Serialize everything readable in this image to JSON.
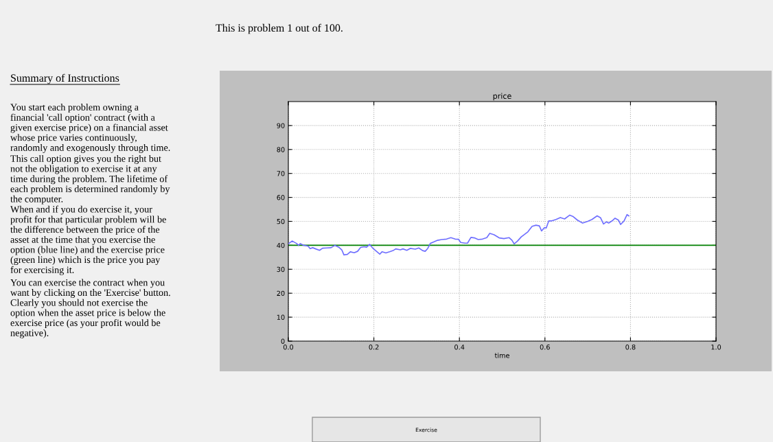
{
  "chart_data": {
    "type": "line",
    "title": "price",
    "xlabel": "time",
    "x": [
      0.0,
      0.009,
      0.019,
      0.024,
      0.028,
      0.036,
      0.046,
      0.051,
      0.057,
      0.064,
      0.073,
      0.08,
      0.09,
      0.1,
      0.109,
      0.118,
      0.125,
      0.13,
      0.138,
      0.145,
      0.154,
      0.162,
      0.169,
      0.177,
      0.183,
      0.19,
      0.198,
      0.206,
      0.214,
      0.219,
      0.228,
      0.237,
      0.245,
      0.251,
      0.262,
      0.268,
      0.277,
      0.285,
      0.297,
      0.305,
      0.314,
      0.32,
      0.326,
      0.332,
      0.34,
      0.349,
      0.359,
      0.37,
      0.38,
      0.39,
      0.398,
      0.403,
      0.413,
      0.419,
      0.427,
      0.435,
      0.444,
      0.454,
      0.464,
      0.471,
      0.481,
      0.493,
      0.504,
      0.516,
      0.523,
      0.528,
      0.536,
      0.545,
      0.552,
      0.56,
      0.57,
      0.579,
      0.587,
      0.592,
      0.599,
      0.603,
      0.609,
      0.616,
      0.626,
      0.636,
      0.646,
      0.658,
      0.666,
      0.676,
      0.688,
      0.7,
      0.71,
      0.722,
      0.73,
      0.737,
      0.744,
      0.749,
      0.757,
      0.764,
      0.772,
      0.777,
      0.785,
      0.792,
      0.796
    ],
    "series": [
      {
        "color": "#6f6fff",
        "values": [
          40.6,
          41.8,
          40.8,
          40.0,
          40.7,
          40.0,
          39.7,
          38.6,
          39.0,
          38.5,
          37.9,
          38.8,
          38.9,
          39.0,
          40.0,
          39.2,
          38.1,
          36.0,
          36.2,
          37.3,
          36.9,
          37.5,
          39.1,
          39.4,
          39.2,
          40.4,
          38.7,
          37.5,
          36.3,
          37.3,
          36.8,
          37.3,
          37.8,
          38.5,
          38.1,
          38.5,
          37.9,
          38.7,
          38.4,
          38.9,
          37.8,
          37.5,
          38.7,
          40.8,
          41.4,
          42.1,
          42.4,
          42.6,
          43.2,
          42.6,
          42.5,
          41.2,
          40.9,
          40.9,
          43.3,
          43.1,
          42.4,
          42.6,
          43.2,
          45.0,
          44.4,
          43.1,
          42.8,
          43.2,
          42.1,
          40.6,
          41.8,
          43.6,
          44.5,
          45.6,
          47.9,
          48.4,
          48.1,
          46.0,
          47.4,
          47.2,
          50.2,
          50.2,
          50.8,
          51.6,
          51.0,
          52.6,
          52.0,
          50.5,
          49.3,
          50.0,
          50.8,
          52.3,
          51.5,
          48.9,
          49.8,
          49.3,
          50.2,
          51.3,
          50.5,
          48.7,
          50.2,
          52.8,
          52.3
        ]
      }
    ],
    "ref_lines": [
      {
        "axis": "y",
        "value": 40,
        "color": "#008000"
      }
    ],
    "xlim": [
      0,
      1
    ],
    "ylim": [
      0,
      100
    ],
    "xticks": [
      {
        "value": 0,
        "label": "0.0"
      },
      {
        "value": 0.2,
        "label": "0.2"
      },
      {
        "value": 0.4,
        "label": "0.4"
      },
      {
        "value": 0.6,
        "label": "0.6"
      },
      {
        "value": 0.8,
        "label": "0.8"
      },
      {
        "value": 1,
        "label": "1.0"
      }
    ],
    "yticks": [
      0,
      10,
      20,
      30,
      40,
      50,
      60,
      70,
      80,
      90
    ],
    "grid": true,
    "line_style": "solid",
    "marker": "none",
    "annotations": [
      "This is problem 1 out of 100.",
      "Summary of Instructions",
      "You start each problem owning a financial 'call option' contract (with a given exercise price) on a financial asset whose price varies continuously, randomly and exogenously through time.",
      "This call option gives you the right but not the obligation to exercise it at any time during the problem. The lifetime of each problem is determined randomly by the computer.",
      "When and if you do exercise it, your profit for that particular problem will be the difference between the price of the asset at the time that you exercise the option (blue line) and the exercise price (green line) which is the price you pay for exercising it.",
      "You can exercise the contract when you want by clicking on the 'Exercise' button. Clearly you should not exercise the option when the asset price is below the exercise price (as your profit would be negative).",
      "Exercise"
    ]
  }
}
